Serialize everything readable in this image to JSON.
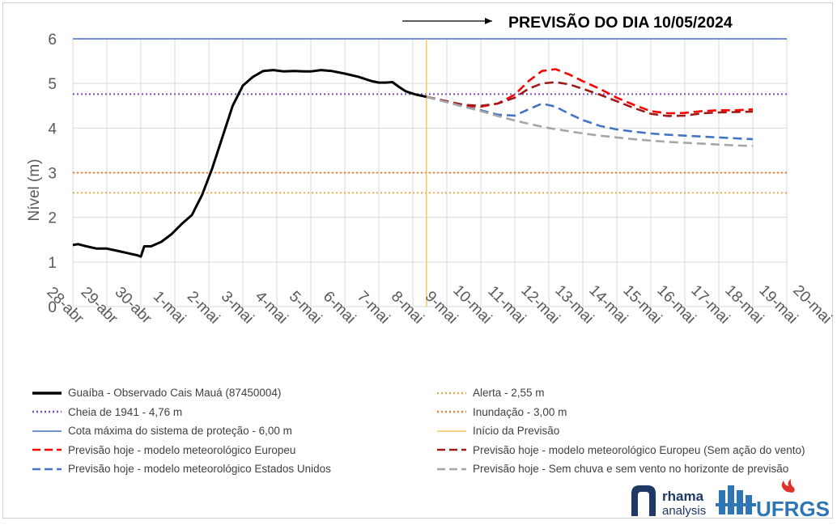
{
  "chart_data": {
    "type": "line",
    "title": "PREVISÃO DO DIA 10/05/2024",
    "ylabel": "Nível (m)",
    "xlabel": "",
    "ylim": [
      0,
      6
    ],
    "yticks": [
      "0",
      "1",
      "2",
      "3",
      "4",
      "5",
      "6"
    ],
    "categories": [
      "28-abr",
      "29-abr",
      "30-abr",
      "1-mai",
      "2-mai",
      "3-mai",
      "4-mai",
      "5-mai",
      "6-mai",
      "7-mai",
      "8-mai",
      "9-mai",
      "10-mai",
      "11-mai",
      "12-mai",
      "13-mai",
      "14-mai",
      "15-mai",
      "16-mai",
      "17-mai",
      "18-mai",
      "19-mai",
      "20-mai"
    ],
    "grid": true,
    "legend_position": "bottom",
    "reference_lines": [
      {
        "name": "Alerta  - 2,55 m",
        "y": 2.55,
        "color": "#e8a94e",
        "style": "dotted"
      },
      {
        "name": "Cheia de 1941 - 4,76 m",
        "y": 4.76,
        "color": "#7b4bc9",
        "style": "dotted"
      },
      {
        "name": "Inundação - 3,00 m",
        "y": 3.0,
        "color": "#ed7d31",
        "style": "dotted"
      },
      {
        "name": "Cota máxima do sistema de proteção - 6,00 m",
        "y": 6.0,
        "color": "#4472c4",
        "style": "solid"
      }
    ],
    "vertical_lines": [
      {
        "name": "Início da Previsão",
        "x": 10.4,
        "color": "#f2c462"
      }
    ],
    "series": [
      {
        "name": "Guaíba - Observado Cais Mauá (87450004)",
        "color": "#000000",
        "style": "solid",
        "x": [
          0,
          0.15,
          0.4,
          0.7,
          1.0,
          1.3,
          1.6,
          1.9,
          2.0,
          2.1,
          2.3,
          2.6,
          2.9,
          3.2,
          3.5,
          3.8,
          4.1,
          4.4,
          4.7,
          5.0,
          5.3,
          5.6,
          5.9,
          6.2,
          6.5,
          6.8,
          7.0,
          7.3,
          7.6,
          8.0,
          8.4,
          8.8,
          9.0,
          9.2,
          9.4,
          9.6,
          9.8,
          10.1,
          10.4
        ],
        "y": [
          1.38,
          1.4,
          1.35,
          1.3,
          1.3,
          1.25,
          1.2,
          1.15,
          1.12,
          1.35,
          1.35,
          1.45,
          1.62,
          1.85,
          2.05,
          2.5,
          3.1,
          3.8,
          4.5,
          4.95,
          5.15,
          5.28,
          5.3,
          5.27,
          5.28,
          5.27,
          5.27,
          5.3,
          5.28,
          5.22,
          5.15,
          5.05,
          5.02,
          5.02,
          5.03,
          4.92,
          4.82,
          4.75,
          4.7
        ]
      },
      {
        "name": "Previsão hoje - modelo meteorológico Europeu",
        "color": "#ff0000",
        "style": "dashed",
        "x": [
          10.4,
          11.0,
          11.5,
          12.0,
          12.5,
          13.0,
          13.4,
          13.8,
          14.2,
          14.6,
          15.0,
          15.5,
          16.0,
          16.5,
          17.0,
          17.5,
          18.0,
          18.5,
          19.0,
          19.5,
          20.0
        ],
        "y": [
          4.7,
          4.6,
          4.5,
          4.48,
          4.55,
          4.75,
          5.05,
          5.28,
          5.32,
          5.2,
          5.05,
          4.88,
          4.68,
          4.52,
          4.38,
          4.33,
          4.34,
          4.38,
          4.4,
          4.4,
          4.42
        ]
      },
      {
        "name": "Previsão hoje - modelo meteorológico Europeu (Sem ação do vento)",
        "color": "#9c1a1a",
        "style": "dashed",
        "x": [
          10.4,
          11.0,
          11.5,
          12.0,
          12.5,
          13.0,
          13.4,
          13.8,
          14.2,
          14.6,
          15.0,
          15.5,
          16.0,
          16.5,
          17.0,
          17.5,
          18.0,
          18.5,
          19.0,
          19.5,
          20.0
        ],
        "y": [
          4.7,
          4.6,
          4.52,
          4.5,
          4.55,
          4.68,
          4.88,
          5.0,
          5.03,
          4.98,
          4.88,
          4.75,
          4.6,
          4.45,
          4.32,
          4.27,
          4.28,
          4.33,
          4.35,
          4.36,
          4.37
        ]
      },
      {
        "name": "Previsão hoje - modelo meteorológico Estados Unidos",
        "color": "#4472c4",
        "style": "dashed",
        "x": [
          10.4,
          11.0,
          11.5,
          12.0,
          12.5,
          13.0,
          13.4,
          13.8,
          14.2,
          14.6,
          15.0,
          15.5,
          16.0,
          16.5,
          17.0,
          17.5,
          18.0,
          18.5,
          19.0,
          19.5,
          20.0
        ],
        "y": [
          4.7,
          4.58,
          4.48,
          4.4,
          4.3,
          4.28,
          4.42,
          4.55,
          4.48,
          4.32,
          4.18,
          4.05,
          3.97,
          3.92,
          3.88,
          3.85,
          3.83,
          3.81,
          3.79,
          3.77,
          3.75
        ]
      },
      {
        "name": "Previsão hoje - Sem chuva e sem vento no horizonte de previsão",
        "color": "#a6a6a6",
        "style": "dashed",
        "x": [
          10.4,
          11.0,
          11.5,
          12.0,
          12.5,
          13.0,
          13.5,
          14.0,
          14.5,
          15.0,
          15.5,
          16.0,
          16.5,
          17.0,
          17.5,
          18.0,
          18.5,
          19.0,
          19.5,
          20.0
        ],
        "y": [
          4.7,
          4.58,
          4.48,
          4.38,
          4.27,
          4.17,
          4.08,
          4.0,
          3.94,
          3.88,
          3.83,
          3.79,
          3.75,
          3.72,
          3.69,
          3.67,
          3.65,
          3.63,
          3.61,
          3.6
        ]
      }
    ]
  },
  "legend": [
    {
      "label": "Guaíba - Observado Cais Mauá (87450004)",
      "color": "#000000",
      "style": "solid-thick"
    },
    {
      "label": "Alerta  - 2,55 m",
      "color": "#e8a94e",
      "style": "dotted"
    },
    {
      "label": "Cheia de 1941 - 4,76 m",
      "color": "#7b4bc9",
      "style": "dotted"
    },
    {
      "label": "Inundação - 3,00 m",
      "color": "#ed7d31",
      "style": "dotted"
    },
    {
      "label": "Cota máxima do sistema de proteção - 6,00 m",
      "color": "#4472c4",
      "style": "solid"
    },
    {
      "label": "Início da Previsão",
      "color": "#f2c462",
      "style": "solid"
    },
    {
      "label": "Previsão hoje - modelo meteorológico Europeu",
      "color": "#ff0000",
      "style": "dashed"
    },
    {
      "label": "Previsão hoje - modelo meteorológico Europeu (Sem ação do vento)",
      "color": "#9c1a1a",
      "style": "dashed"
    },
    {
      "label": "Previsão hoje - modelo meteorológico Estados Unidos",
      "color": "#4472c4",
      "style": "dashed"
    },
    {
      "label": "Previsão hoje - Sem chuva e sem vento no horizonte de previsão",
      "color": "#a6a6a6",
      "style": "dashed"
    }
  ],
  "logos": {
    "rhama_line1": "rhama",
    "rhama_line2": "analysis",
    "ufrgs": "UFRGS",
    "rhama_color": "#1f3864",
    "ufrgs_color": "#2e75b6",
    "flame_color": "#e0322a"
  }
}
